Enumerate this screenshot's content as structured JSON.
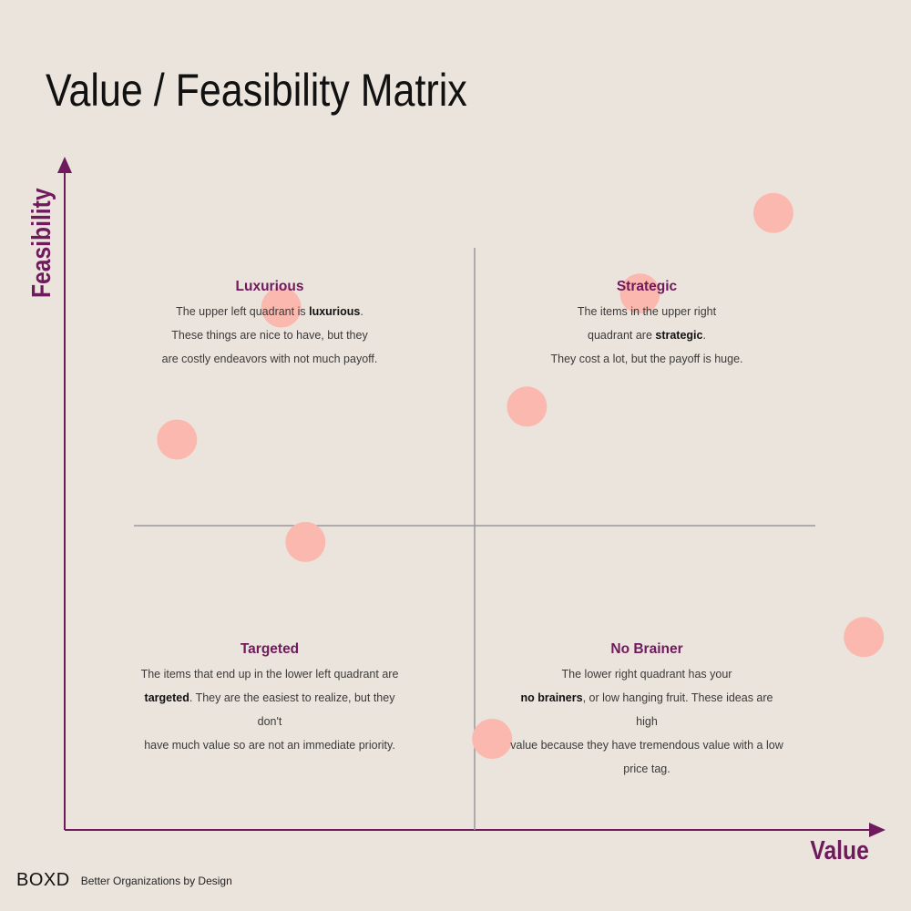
{
  "title": "Value / Feasibility Matrix",
  "axes": {
    "y_label": "Feasibility",
    "x_label": "Value"
  },
  "colors": {
    "accent": "#6e1a5c",
    "dot": "#fbb8ae",
    "background": "#ebe4dc",
    "divider": "#9a9a9a"
  },
  "quadrants": {
    "top_left": {
      "heading": "Luxurious",
      "line1_pre": "The upper left quadrant is ",
      "line1_bold": "luxurious",
      "line1_post": ".",
      "line2": "These things are nice to have, but they",
      "line3": "are costly endeavors with not much payoff."
    },
    "top_right": {
      "heading": "Strategic",
      "line1": "The items in the upper right",
      "line2_pre": "quadrant are ",
      "line2_bold": "strategic",
      "line2_post": ".",
      "line3": "They cost a lot, but the payoff is huge."
    },
    "bottom_left": {
      "heading": "Targeted",
      "line1": "The items that end up in the lower left quadrant are",
      "line2_bold": "targeted",
      "line2_post": ". They are the easiest to realize, but they don't",
      "line3": "have much value so are not an immediate priority."
    },
    "bottom_right": {
      "heading": "No Brainer",
      "line1": "The lower right quadrant has your",
      "line2_bold": "no brainers",
      "line2_post": ", or low hanging fruit. These ideas are high",
      "line3": "value because they have tremendous value with a low",
      "line4": "price tag."
    }
  },
  "chart_data": {
    "type": "scatter",
    "title": "Value / Feasibility Matrix",
    "xlabel": "Value",
    "ylabel": "Feasibility",
    "points": [
      {
        "x": 0.139,
        "y": 0.591
      },
      {
        "x": 0.298,
        "y": 0.436
      },
      {
        "x": 0.268,
        "y": 0.791
      },
      {
        "x": 0.529,
        "y": 0.138
      },
      {
        "x": 0.572,
        "y": 0.641
      },
      {
        "x": 0.712,
        "y": 0.812
      },
      {
        "x": 0.877,
        "y": 0.934
      },
      {
        "x": 0.989,
        "y": 0.292
      }
    ],
    "xlim": [
      0,
      1
    ],
    "ylim": [
      0,
      1
    ],
    "grid": false
  },
  "footer": {
    "logo": "BOXD",
    "tagline": "Better Organizations by Design"
  }
}
